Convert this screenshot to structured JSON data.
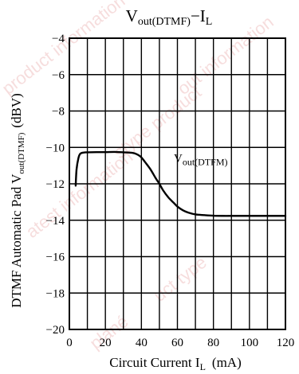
{
  "chart_data": {
    "type": "line",
    "title_main": "V",
    "title_sub": "out(DTMF)",
    "title_tail": "−I",
    "title_tail_sub": "L",
    "xlabel_main": "Circuit Current I",
    "xlabel_sub": "L",
    "xlabel_tail": "(mA)",
    "ylabel_main": "DTMF Automatic Pad V",
    "ylabel_sub": "out(DTMF)",
    "ylabel_tail": "(dBV)",
    "xlim": [
      0,
      120
    ],
    "ylim": [
      -20,
      -4
    ],
    "xticks": [
      0,
      20,
      40,
      60,
      80,
      100,
      120
    ],
    "xtick_labels": [
      "0",
      "20",
      "40",
      "60",
      "80",
      "100",
      "120"
    ],
    "yticks": [
      -4,
      -6,
      -8,
      -10,
      -12,
      -14,
      -16,
      -18,
      -20
    ],
    "ytick_labels": [
      "−4",
      "−6",
      "−8",
      "−10",
      "−12",
      "−14",
      "−16",
      "−18",
      "−20"
    ],
    "grid": true,
    "series": [
      {
        "x": [
          3.5,
          4,
          5,
          6,
          8,
          10,
          15,
          20,
          25,
          30,
          35,
          38,
          40,
          42,
          45,
          48,
          50,
          52,
          55,
          58,
          60,
          63,
          66,
          70,
          75,
          80,
          85,
          90,
          100,
          110,
          120
        ],
        "y": [
          -12.1,
          -11.2,
          -10.6,
          -10.35,
          -10.28,
          -10.27,
          -10.26,
          -10.26,
          -10.25,
          -10.27,
          -10.3,
          -10.4,
          -10.55,
          -10.8,
          -11.2,
          -11.7,
          -12.0,
          -12.35,
          -12.75,
          -13.05,
          -13.25,
          -13.45,
          -13.58,
          -13.68,
          -13.72,
          -13.75,
          -13.76,
          -13.76,
          -13.76,
          -13.76,
          -13.76
        ]
      }
    ],
    "annotation": {
      "main": "V",
      "sub": "out(DTFM)",
      "x": 58,
      "y": -10.8
    },
    "line_color": "#000000"
  },
  "watermark": {
    "lines": [
      "product information",
      "atest information",
      "stype product",
      "uct type",
      "out information",
      "plané"
    ],
    "color": "#e8a0a0"
  }
}
